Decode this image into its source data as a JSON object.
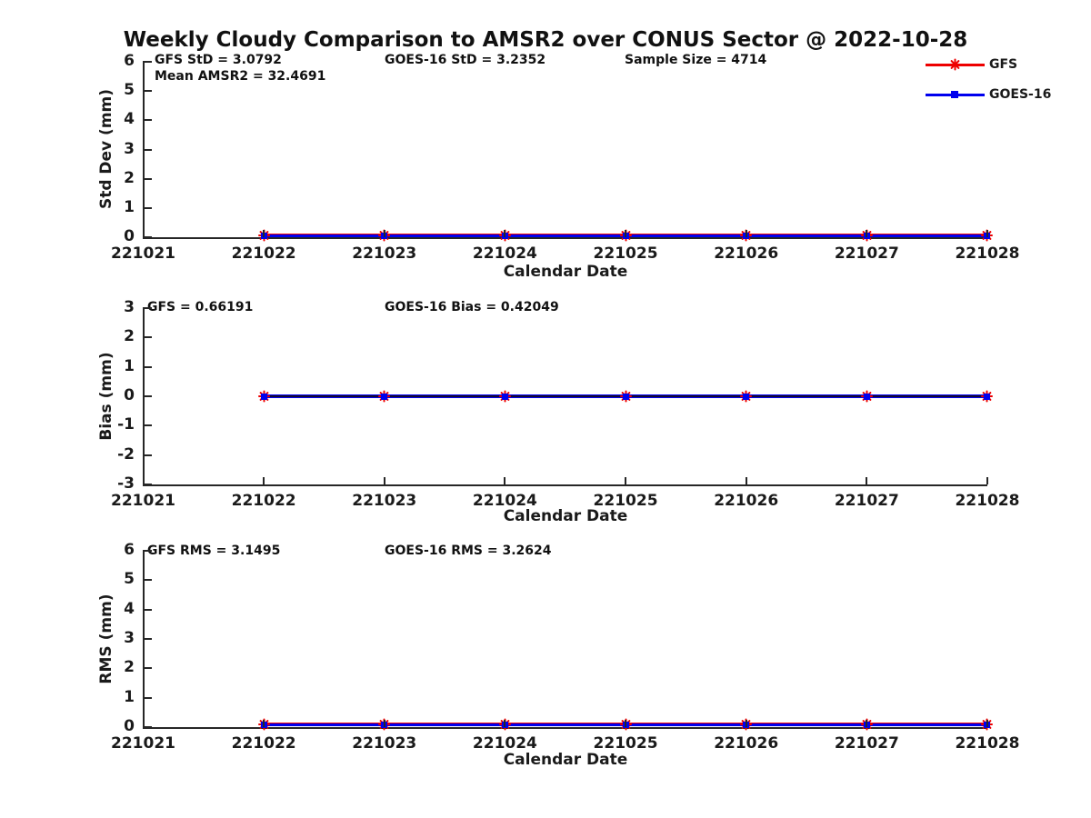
{
  "title": "Weekly Cloudy Comparison to AMSR2 over CONUS Sector @ 2022-10-28",
  "colors": {
    "gfs": "#ee0000",
    "goes16": "#0000ee",
    "axis": "#262626",
    "bias_line": "#150a2d",
    "text": "#111111"
  },
  "legend": {
    "items": [
      {
        "label": "GFS",
        "color": "#ee0000",
        "marker": "asterisk"
      },
      {
        "label": "GOES-16",
        "color": "#0000ee",
        "marker": "square"
      }
    ]
  },
  "chart_data": [
    {
      "type": "line",
      "panel": "std-dev",
      "ylabel": "Std Dev (mm)",
      "xlabel": "Calendar Date",
      "ylim": [
        0,
        6
      ],
      "yticks": [
        0,
        1,
        2,
        3,
        4,
        5,
        6
      ],
      "categories": [
        "221021",
        "221022",
        "221023",
        "221024",
        "221025",
        "221026",
        "221027",
        "221028"
      ],
      "annotations": [
        "GFS StD = 3.0792",
        "Mean AMSR2 = 32.4691",
        "GOES-16 StD = 3.2352",
        "Sample Size = 4714"
      ],
      "stats": {
        "gfs_std": 3.0792,
        "mean_amsr2": 32.4691,
        "goes16_std": 3.2352,
        "sample_size": 4714
      },
      "series": [
        {
          "name": "GFS",
          "marker": "asterisk",
          "x": [
            "221022",
            "221023",
            "221024",
            "221025",
            "221026",
            "221027",
            "221028"
          ],
          "values": [
            0.05,
            0.05,
            0.05,
            0.05,
            0.05,
            0.05,
            0.05
          ]
        },
        {
          "name": "GOES-16",
          "marker": "square",
          "x": [
            "221022",
            "221023",
            "221024",
            "221025",
            "221026",
            "221027",
            "221028"
          ],
          "values": [
            0.05,
            0.05,
            0.05,
            0.05,
            0.05,
            0.05,
            0.05
          ]
        }
      ],
      "legend_position": "upper-right-outside",
      "grid": false
    },
    {
      "type": "line",
      "panel": "bias",
      "ylabel": "Bias (mm)",
      "xlabel": "Calendar Date",
      "ylim": [
        -3,
        3
      ],
      "yticks": [
        -3,
        -2,
        -1,
        0,
        1,
        2,
        3
      ],
      "categories": [
        "221021",
        "221022",
        "221023",
        "221024",
        "221025",
        "221026",
        "221027",
        "221028"
      ],
      "annotations": [
        "GFS = 0.66191",
        "GOES-16 Bias  = 0.42049"
      ],
      "stats": {
        "gfs_bias": 0.66191,
        "goes16_bias": 0.42049
      },
      "series": [
        {
          "name": "GFS",
          "marker": "asterisk",
          "x": [
            "221022",
            "221023",
            "221024",
            "221025",
            "221026",
            "221027",
            "221028"
          ],
          "values": [
            0,
            0,
            0,
            0,
            0,
            0,
            0
          ]
        },
        {
          "name": "GOES-16",
          "marker": "square",
          "x": [
            "221022",
            "221023",
            "221024",
            "221025",
            "221026",
            "221027",
            "221028"
          ],
          "values": [
            0,
            0,
            0,
            0,
            0,
            0,
            0
          ]
        }
      ],
      "grid": false
    },
    {
      "type": "line",
      "panel": "rms",
      "ylabel": "RMS (mm)",
      "xlabel": "Calendar Date",
      "ylim": [
        0,
        6
      ],
      "yticks": [
        0,
        1,
        2,
        3,
        4,
        5,
        6
      ],
      "categories": [
        "221021",
        "221022",
        "221023",
        "221024",
        "221025",
        "221026",
        "221027",
        "221028"
      ],
      "annotations": [
        "GFS RMS = 3.1495",
        "GOES-16 RMS = 3.2624"
      ],
      "stats": {
        "gfs_rms": 3.1495,
        "goes16_rms": 3.2624
      },
      "series": [
        {
          "name": "GFS",
          "marker": "asterisk",
          "x": [
            "221022",
            "221023",
            "221024",
            "221025",
            "221026",
            "221027",
            "221028"
          ],
          "values": [
            0.08,
            0.08,
            0.08,
            0.08,
            0.08,
            0.08,
            0.08
          ]
        },
        {
          "name": "GOES-16",
          "marker": "square",
          "x": [
            "221022",
            "221023",
            "221024",
            "221025",
            "221026",
            "221027",
            "221028"
          ],
          "values": [
            0.08,
            0.08,
            0.08,
            0.08,
            0.08,
            0.08,
            0.08
          ]
        }
      ],
      "grid": false
    }
  ]
}
